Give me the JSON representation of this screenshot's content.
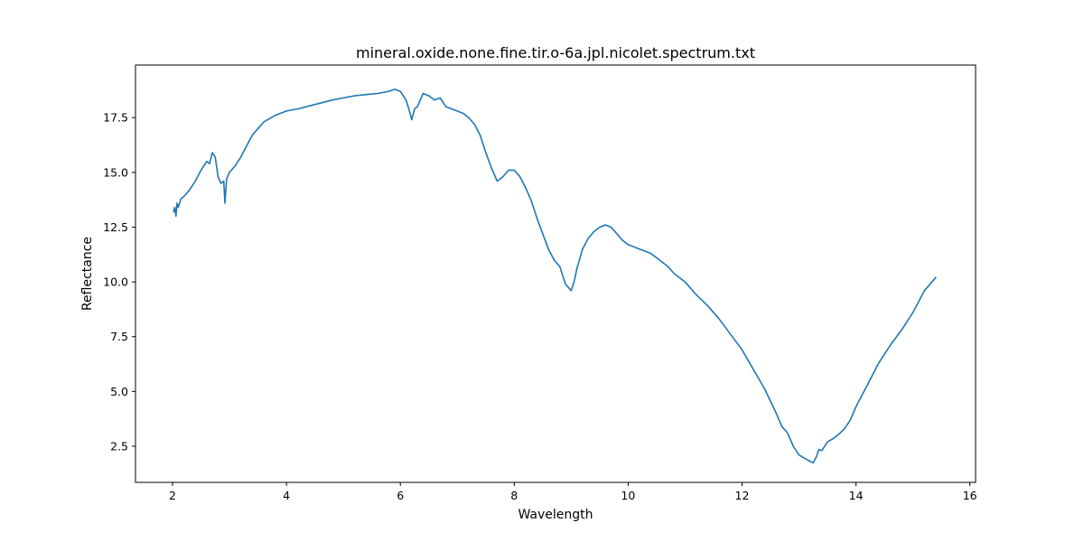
{
  "chart_data": {
    "type": "line",
    "title": "mineral.oxide.none.fine.tir.o-6a.jpl.nicolet.spectrum.txt",
    "xlabel": "Wavelength",
    "ylabel": "Reflectance",
    "xlim": [
      1.35,
      16.1
    ],
    "ylim": [
      0.85,
      19.9
    ],
    "xticks": [
      2,
      4,
      6,
      8,
      10,
      12,
      14,
      16
    ],
    "xtick_labels": [
      "2",
      "4",
      "6",
      "8",
      "10",
      "12",
      "14",
      "16"
    ],
    "yticks": [
      2.5,
      5.0,
      7.5,
      10.0,
      12.5,
      15.0,
      17.5
    ],
    "ytick_labels": [
      "2.5",
      "5.0",
      "7.5",
      "10.0",
      "12.5",
      "15.0",
      "17.5"
    ],
    "grid": false,
    "line_color": "#1f77b4",
    "series": [
      {
        "x": [
          2.02,
          2.04,
          2.06,
          2.08,
          2.1,
          2.15,
          2.2,
          2.3,
          2.4,
          2.5,
          2.55,
          2.6,
          2.65,
          2.7,
          2.75,
          2.8,
          2.85,
          2.9,
          2.92,
          2.95,
          3.0,
          3.1,
          3.2,
          3.3,
          3.4,
          3.5,
          3.6,
          3.8,
          4.0,
          4.2,
          4.5,
          4.8,
          5.0,
          5.2,
          5.4,
          5.6,
          5.8,
          5.9,
          6.0,
          6.1,
          6.15,
          6.2,
          6.25,
          6.3,
          6.4,
          6.5,
          6.6,
          6.7,
          6.8,
          6.9,
          7.0,
          7.1,
          7.2,
          7.3,
          7.4,
          7.5,
          7.6,
          7.7,
          7.8,
          7.9,
          8.0,
          8.1,
          8.2,
          8.3,
          8.4,
          8.5,
          8.6,
          8.7,
          8.8,
          8.9,
          9.0,
          9.05,
          9.1,
          9.2,
          9.3,
          9.4,
          9.5,
          9.6,
          9.7,
          9.8,
          9.9,
          10.0,
          10.1,
          10.2,
          10.3,
          10.4,
          10.5,
          10.6,
          10.7,
          10.8,
          10.9,
          11.0,
          11.2,
          11.4,
          11.6,
          11.8,
          12.0,
          12.2,
          12.4,
          12.6,
          12.7,
          12.8,
          12.9,
          13.0,
          13.1,
          13.2,
          13.25,
          13.3,
          13.35,
          13.4,
          13.5,
          13.6,
          13.7,
          13.8,
          13.9,
          14.0,
          14.2,
          14.4,
          14.6,
          14.8,
          15.0,
          15.2,
          15.4
        ],
        "y": [
          13.2,
          13.4,
          13.0,
          13.6,
          13.4,
          13.8,
          13.9,
          14.2,
          14.6,
          15.1,
          15.3,
          15.5,
          15.4,
          15.9,
          15.7,
          14.8,
          14.5,
          14.6,
          13.6,
          14.7,
          15.0,
          15.3,
          15.7,
          16.2,
          16.7,
          17.0,
          17.3,
          17.6,
          17.8,
          17.9,
          18.1,
          18.3,
          18.4,
          18.5,
          18.55,
          18.6,
          18.7,
          18.8,
          18.7,
          18.3,
          17.9,
          17.4,
          17.9,
          18.0,
          18.6,
          18.5,
          18.3,
          18.4,
          18.0,
          17.9,
          17.8,
          17.7,
          17.5,
          17.2,
          16.7,
          15.9,
          15.2,
          14.6,
          14.8,
          15.1,
          15.1,
          14.8,
          14.3,
          13.7,
          12.9,
          12.2,
          11.5,
          11.0,
          10.7,
          9.9,
          9.6,
          10.0,
          10.6,
          11.5,
          12.0,
          12.3,
          12.5,
          12.6,
          12.5,
          12.2,
          11.9,
          11.7,
          11.6,
          11.5,
          11.4,
          11.3,
          11.1,
          10.9,
          10.7,
          10.4,
          10.2,
          10.0,
          9.4,
          8.9,
          8.3,
          7.6,
          6.9,
          6.0,
          5.1,
          4.0,
          3.4,
          3.1,
          2.5,
          2.1,
          1.95,
          1.8,
          1.75,
          2.0,
          2.35,
          2.3,
          2.7,
          2.85,
          3.05,
          3.3,
          3.7,
          4.3,
          5.3,
          6.3,
          7.1,
          7.8,
          8.6,
          9.6,
          10.2
        ]
      }
    ]
  }
}
